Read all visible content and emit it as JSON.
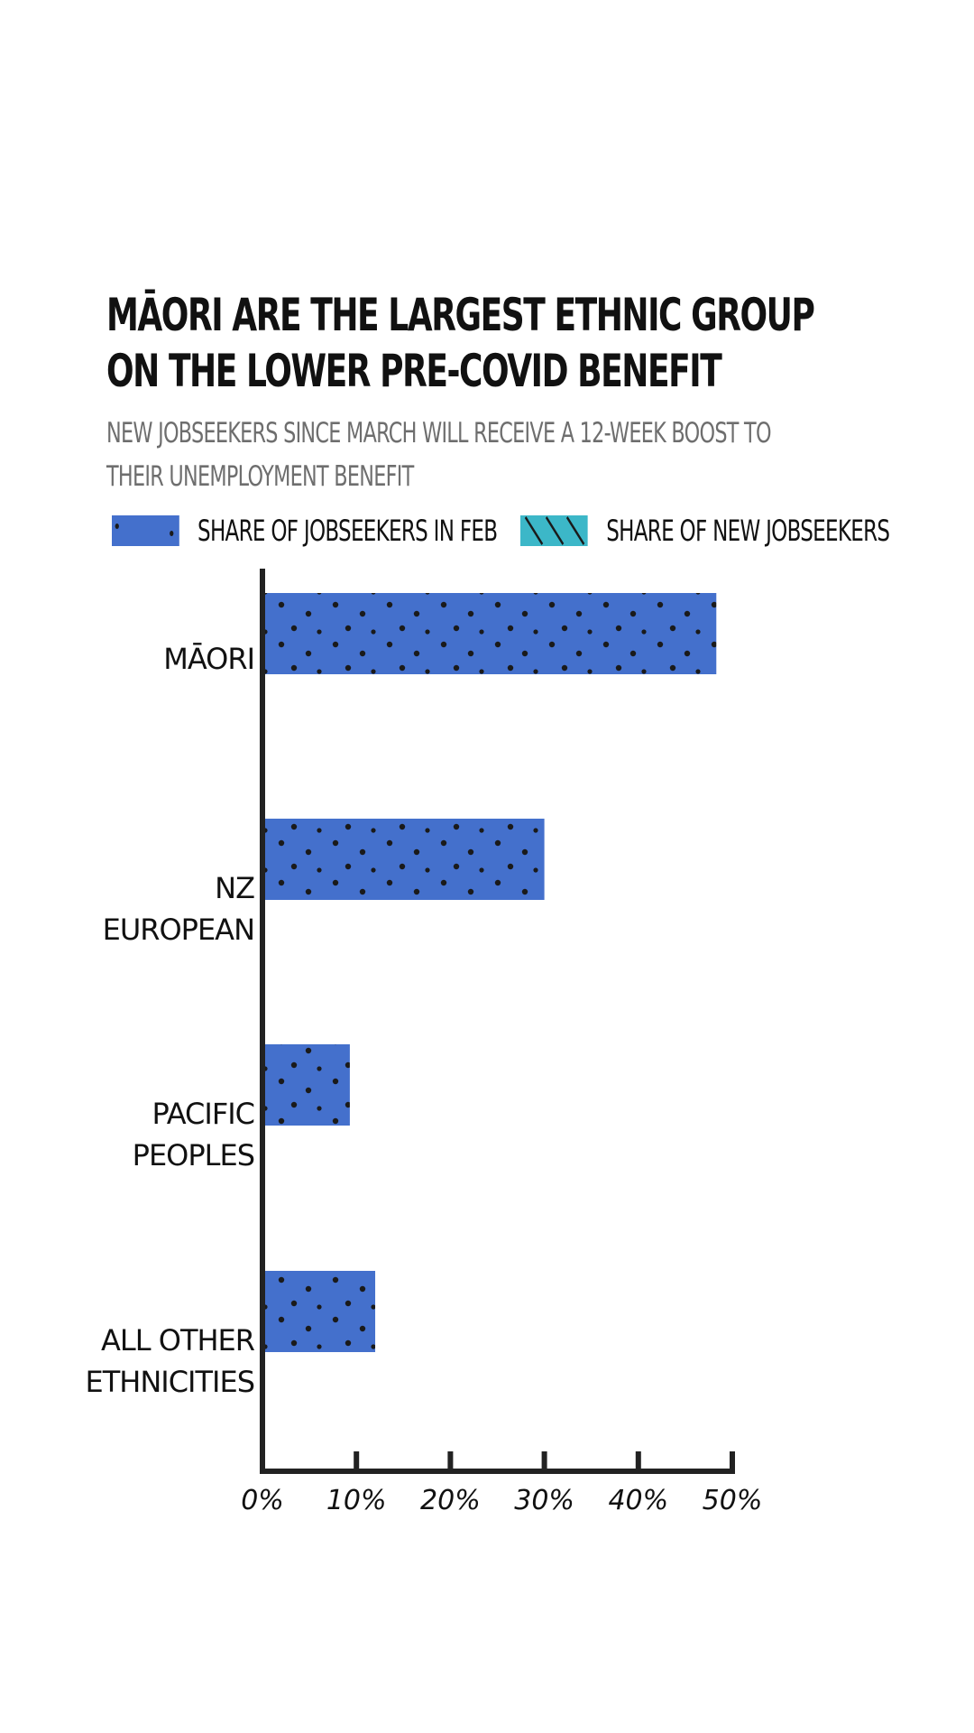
{
  "chart_data": {
    "type": "bar",
    "orientation": "horizontal",
    "title": "Māori are the largest ethnic group on the lower pre-Covid benefit",
    "subtitle": "New jobseekers since March will receive a 12-week boost to their unemployment benefit",
    "categories": [
      "Māori",
      "NZ European",
      "Pacific Peoples",
      "All other ethnicities"
    ],
    "series": [
      {
        "name": "Share of jobseekers in Feb",
        "color": "#4470cc",
        "pattern": "dots",
        "values": [
          48.3,
          30.0,
          9.3,
          12.0
        ]
      },
      {
        "name": "Share of new jobseekers",
        "color": "#3cb7c8",
        "pattern": "diagonal-lines",
        "values": [
          null,
          null,
          null,
          null
        ]
      }
    ],
    "xlim": [
      0,
      50
    ],
    "xticks": [
      "0%",
      "10%",
      "20%",
      "30%",
      "40%",
      "50%"
    ],
    "legend_position": "top",
    "grid": false
  }
}
